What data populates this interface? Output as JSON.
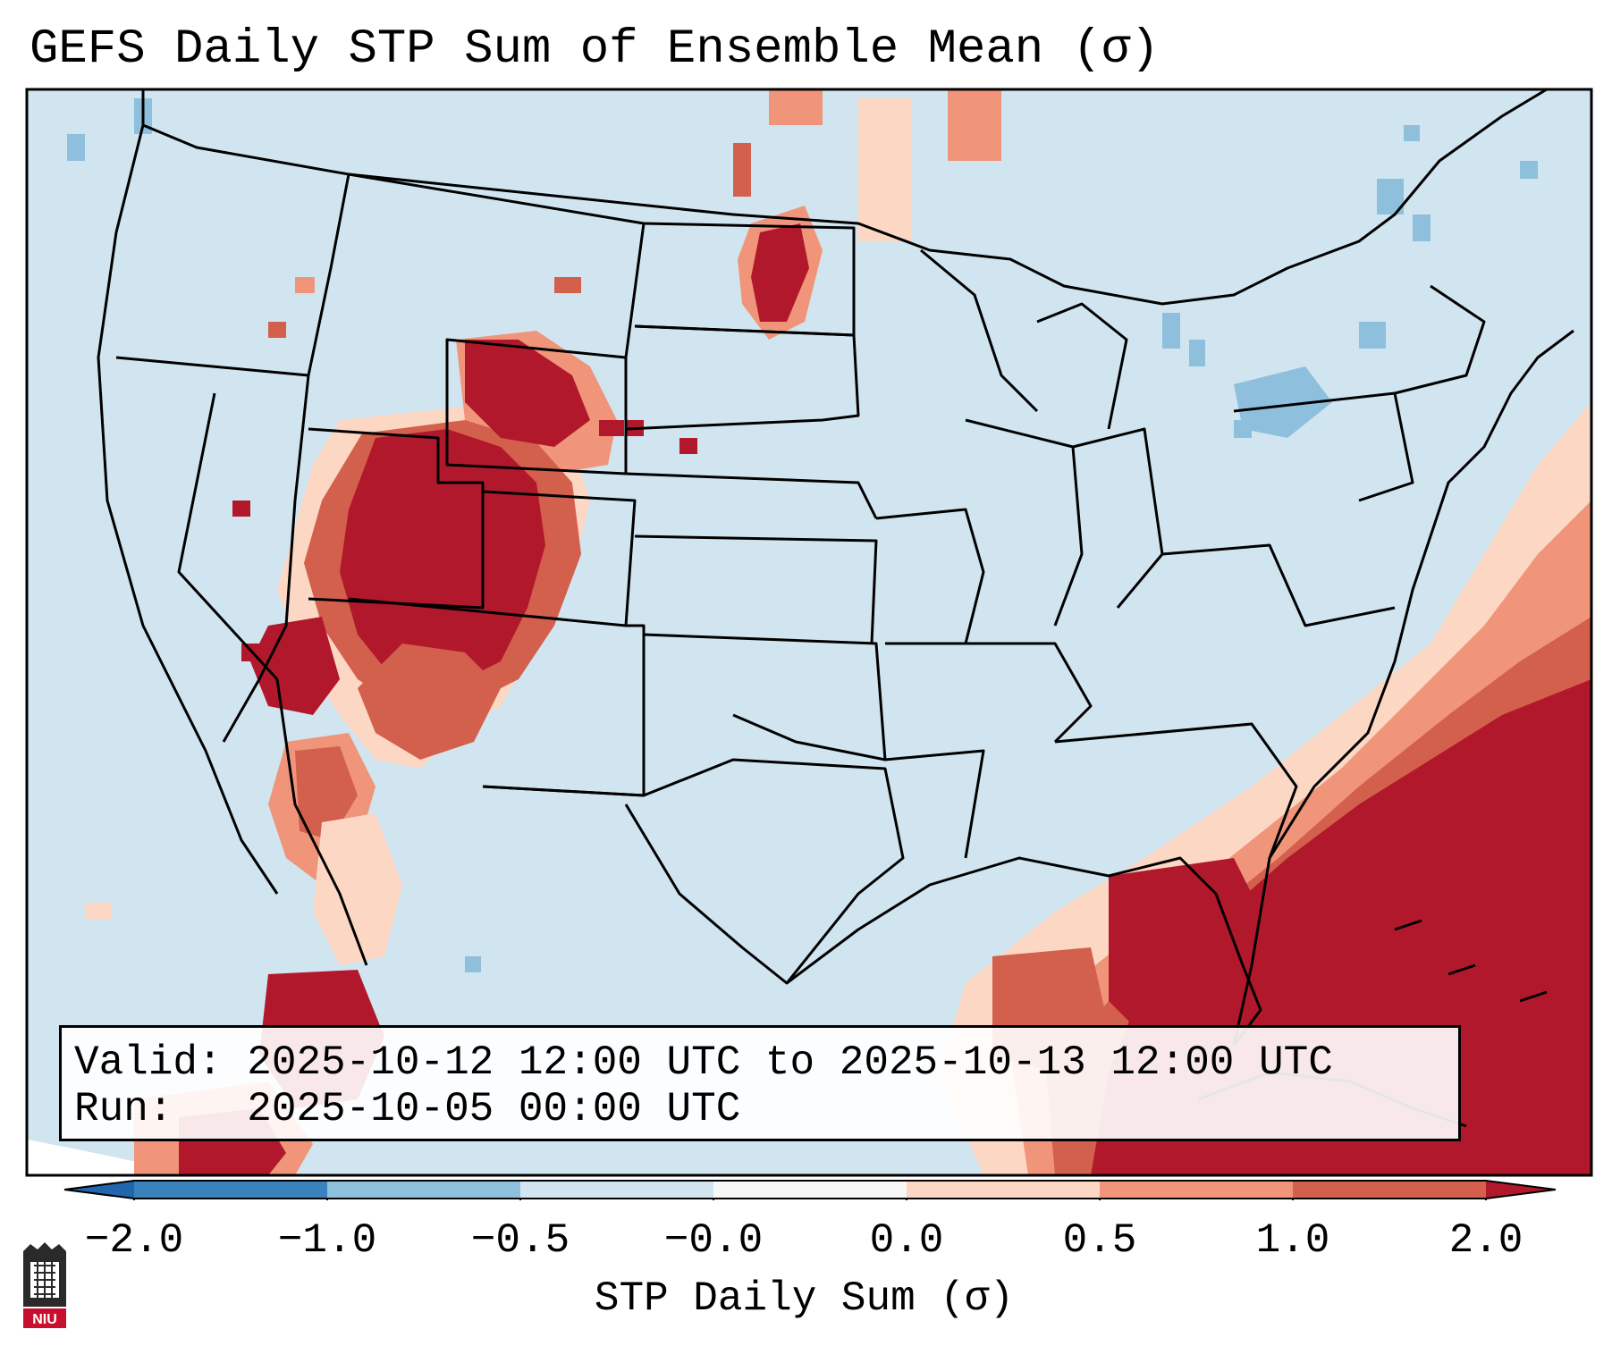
{
  "title": "GEFS Daily STP Sum of Ensemble Mean (σ)",
  "info": {
    "valid_label": "Valid: ",
    "valid_value": "2025-10-12 12:00 UTC to 2025-10-13 12:00 UTC",
    "run_label": "Run:   ",
    "run_value": "2025-10-05 00:00 UTC"
  },
  "colorbar": {
    "label": "STP Daily Sum (σ)",
    "ticks": [
      "−2.0",
      "−1.0",
      "−0.5",
      "−0.0",
      "0.0",
      "0.5",
      "1.0",
      "2.0"
    ],
    "bin_colors": [
      "#3a82bd",
      "#8ebfdc",
      "#d1e5f0",
      "#f7f7f7",
      "#fcd8c4",
      "#f0957a",
      "#d35f4d",
      "#b2182b"
    ],
    "under_color": "#2166ac",
    "over_color": "#b2182b"
  },
  "map": {
    "background_color": "#d1e5f0",
    "region": "Continental United States"
  },
  "logo": {
    "text": "NIU"
  }
}
